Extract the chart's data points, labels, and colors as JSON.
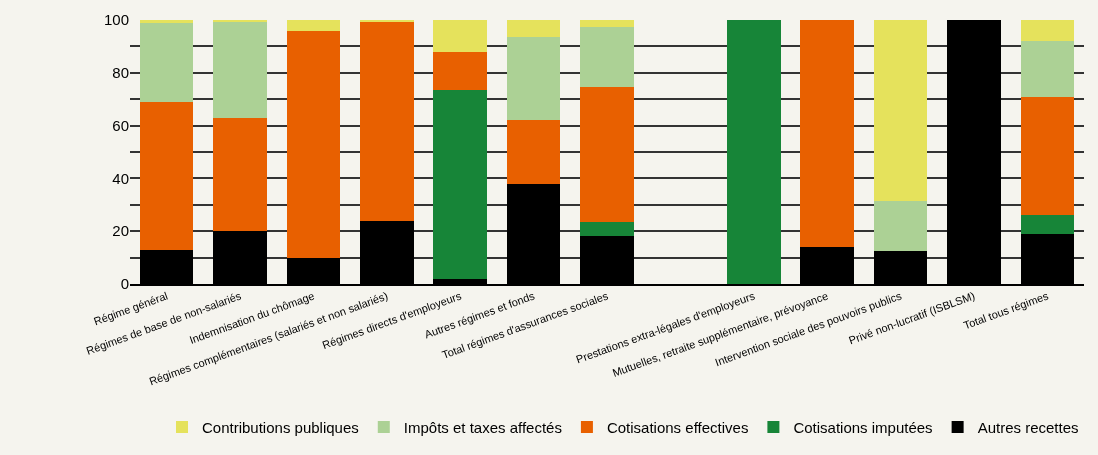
{
  "chart_data": {
    "type": "bar",
    "stacked": true,
    "categories": [
      "Régime général",
      "Régimes de base de non-salariés",
      "Indemnisation du chômage",
      "Régimes complémentaires (salariés et non salariés)",
      "Régimes directs d'employeurs",
      "Autres régimes et fonds",
      "Total régimes d'assurances sociales",
      null,
      "Prestations extra-légales d'employeurs",
      "Mutuelles, retraite supplémentaire, prévoyance",
      "Intervention sociale des pouvoirs publics",
      "Privé non-lucratif (ISBLSM)",
      "Total tous régimes"
    ],
    "series": [
      {
        "name": "Autres recettes",
        "color": "#000000",
        "values": [
          13,
          20,
          10,
          24,
          2,
          38,
          18,
          null,
          0,
          14,
          12.5,
          100,
          19
        ]
      },
      {
        "name": "Cotisations imputées",
        "color": "#178538",
        "values": [
          0,
          0,
          0,
          0,
          71.5,
          0,
          5.5,
          null,
          100,
          0,
          0,
          0,
          7
        ]
      },
      {
        "name": "Cotisations effectives",
        "color": "#e86000",
        "values": [
          56,
          43,
          86,
          75.5,
          14.5,
          24,
          51,
          null,
          0,
          86,
          0,
          0,
          45
        ]
      },
      {
        "name": "Impôts et taxes affectés",
        "color": "#acd195",
        "values": [
          30,
          36.5,
          0,
          0,
          0,
          31.5,
          23,
          null,
          0,
          0,
          19,
          0,
          21
        ]
      },
      {
        "name": "Contributions publiques",
        "color": "#e5e25c",
        "values": [
          1,
          0.5,
          4,
          0.5,
          12,
          6.5,
          2.5,
          null,
          0,
          0,
          68.5,
          0,
          8
        ]
      }
    ],
    "ylim": [
      0,
      100
    ],
    "yticks": [
      0,
      {
        "value": 10,
        "label": null
      },
      20,
      {
        "value": 30,
        "label": null
      },
      40,
      {
        "value": 50,
        "label": null
      },
      60,
      {
        "value": 70,
        "label": null
      },
      80,
      {
        "value": 90,
        "label": null
      },
      100
    ],
    "grid": "y",
    "legend": "bottom"
  }
}
